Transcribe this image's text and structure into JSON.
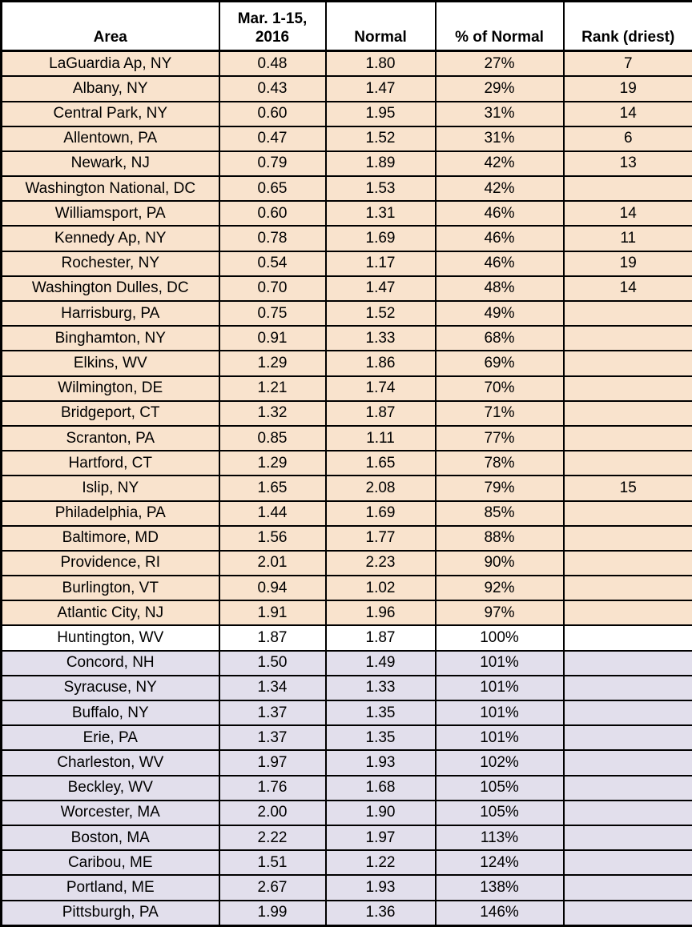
{
  "colors": {
    "border": "#000000",
    "text": "#000000",
    "header_fill": "#ffffff",
    "below_normal_fill": "#f9e3cd",
    "at_normal_fill": "#ffffff",
    "above_normal_fill": "#e2dfec"
  },
  "chart_data": {
    "type": "table",
    "title": "",
    "columns": [
      "Area",
      "Mar. 1-15, 2016",
      "Normal",
      "% of Normal",
      "Rank (driest)"
    ],
    "legend_semantics": {
      "band-below": "precipitation below normal (% of Normal < 100%)",
      "band-at": "precipitation at normal (100%)",
      "band-above": "precipitation above normal (% of Normal > 100%)"
    },
    "rows": [
      {
        "area": "LaGuardia Ap, NY",
        "mar_1_15_2016": "0.48",
        "normal": "1.80",
        "pct_of_normal": "27%",
        "rank_driest": "7",
        "band": "below"
      },
      {
        "area": "Albany, NY",
        "mar_1_15_2016": "0.43",
        "normal": "1.47",
        "pct_of_normal": "29%",
        "rank_driest": "19",
        "band": "below"
      },
      {
        "area": "Central Park, NY",
        "mar_1_15_2016": "0.60",
        "normal": "1.95",
        "pct_of_normal": "31%",
        "rank_driest": "14",
        "band": "below"
      },
      {
        "area": "Allentown, PA",
        "mar_1_15_2016": "0.47",
        "normal": "1.52",
        "pct_of_normal": "31%",
        "rank_driest": "6",
        "band": "below"
      },
      {
        "area": "Newark, NJ",
        "mar_1_15_2016": "0.79",
        "normal": "1.89",
        "pct_of_normal": "42%",
        "rank_driest": "13",
        "band": "below"
      },
      {
        "area": "Washington National, DC",
        "mar_1_15_2016": "0.65",
        "normal": "1.53",
        "pct_of_normal": "42%",
        "rank_driest": "",
        "band": "below"
      },
      {
        "area": "Williamsport, PA",
        "mar_1_15_2016": "0.60",
        "normal": "1.31",
        "pct_of_normal": "46%",
        "rank_driest": "14",
        "band": "below"
      },
      {
        "area": "Kennedy Ap, NY",
        "mar_1_15_2016": "0.78",
        "normal": "1.69",
        "pct_of_normal": "46%",
        "rank_driest": "11",
        "band": "below"
      },
      {
        "area": "Rochester, NY",
        "mar_1_15_2016": "0.54",
        "normal": "1.17",
        "pct_of_normal": "46%",
        "rank_driest": "19",
        "band": "below"
      },
      {
        "area": "Washington Dulles, DC",
        "mar_1_15_2016": "0.70",
        "normal": "1.47",
        "pct_of_normal": "48%",
        "rank_driest": "14",
        "band": "below"
      },
      {
        "area": "Harrisburg, PA",
        "mar_1_15_2016": "0.75",
        "normal": "1.52",
        "pct_of_normal": "49%",
        "rank_driest": "",
        "band": "below"
      },
      {
        "area": "Binghamton, NY",
        "mar_1_15_2016": "0.91",
        "normal": "1.33",
        "pct_of_normal": "68%",
        "rank_driest": "",
        "band": "below"
      },
      {
        "area": "Elkins, WV",
        "mar_1_15_2016": "1.29",
        "normal": "1.86",
        "pct_of_normal": "69%",
        "rank_driest": "",
        "band": "below"
      },
      {
        "area": "Wilmington, DE",
        "mar_1_15_2016": "1.21",
        "normal": "1.74",
        "pct_of_normal": "70%",
        "rank_driest": "",
        "band": "below"
      },
      {
        "area": "Bridgeport, CT",
        "mar_1_15_2016": "1.32",
        "normal": "1.87",
        "pct_of_normal": "71%",
        "rank_driest": "",
        "band": "below"
      },
      {
        "area": "Scranton, PA",
        "mar_1_15_2016": "0.85",
        "normal": "1.11",
        "pct_of_normal": "77%",
        "rank_driest": "",
        "band": "below"
      },
      {
        "area": "Hartford, CT",
        "mar_1_15_2016": "1.29",
        "normal": "1.65",
        "pct_of_normal": "78%",
        "rank_driest": "",
        "band": "below"
      },
      {
        "area": "Islip, NY",
        "mar_1_15_2016": "1.65",
        "normal": "2.08",
        "pct_of_normal": "79%",
        "rank_driest": "15",
        "band": "below"
      },
      {
        "area": "Philadelphia, PA",
        "mar_1_15_2016": "1.44",
        "normal": "1.69",
        "pct_of_normal": "85%",
        "rank_driest": "",
        "band": "below"
      },
      {
        "area": "Baltimore, MD",
        "mar_1_15_2016": "1.56",
        "normal": "1.77",
        "pct_of_normal": "88%",
        "rank_driest": "",
        "band": "below"
      },
      {
        "area": "Providence, RI",
        "mar_1_15_2016": "2.01",
        "normal": "2.23",
        "pct_of_normal": "90%",
        "rank_driest": "",
        "band": "below"
      },
      {
        "area": "Burlington, VT",
        "mar_1_15_2016": "0.94",
        "normal": "1.02",
        "pct_of_normal": "92%",
        "rank_driest": "",
        "band": "below"
      },
      {
        "area": "Atlantic City, NJ",
        "mar_1_15_2016": "1.91",
        "normal": "1.96",
        "pct_of_normal": "97%",
        "rank_driest": "",
        "band": "below"
      },
      {
        "area": "Huntington, WV",
        "mar_1_15_2016": "1.87",
        "normal": "1.87",
        "pct_of_normal": "100%",
        "rank_driest": "",
        "band": "at"
      },
      {
        "area": "Concord, NH",
        "mar_1_15_2016": "1.50",
        "normal": "1.49",
        "pct_of_normal": "101%",
        "rank_driest": "",
        "band": "above"
      },
      {
        "area": "Syracuse, NY",
        "mar_1_15_2016": "1.34",
        "normal": "1.33",
        "pct_of_normal": "101%",
        "rank_driest": "",
        "band": "above"
      },
      {
        "area": "Buffalo, NY",
        "mar_1_15_2016": "1.37",
        "normal": "1.35",
        "pct_of_normal": "101%",
        "rank_driest": "",
        "band": "above"
      },
      {
        "area": "Erie, PA",
        "mar_1_15_2016": "1.37",
        "normal": "1.35",
        "pct_of_normal": "101%",
        "rank_driest": "",
        "band": "above"
      },
      {
        "area": "Charleston, WV",
        "mar_1_15_2016": "1.97",
        "normal": "1.93",
        "pct_of_normal": "102%",
        "rank_driest": "",
        "band": "above"
      },
      {
        "area": "Beckley, WV",
        "mar_1_15_2016": "1.76",
        "normal": "1.68",
        "pct_of_normal": "105%",
        "rank_driest": "",
        "band": "above"
      },
      {
        "area": "Worcester, MA",
        "mar_1_15_2016": "2.00",
        "normal": "1.90",
        "pct_of_normal": "105%",
        "rank_driest": "",
        "band": "above"
      },
      {
        "area": "Boston, MA",
        "mar_1_15_2016": "2.22",
        "normal": "1.97",
        "pct_of_normal": "113%",
        "rank_driest": "",
        "band": "above"
      },
      {
        "area": "Caribou, ME",
        "mar_1_15_2016": "1.51",
        "normal": "1.22",
        "pct_of_normal": "124%",
        "rank_driest": "",
        "band": "above"
      },
      {
        "area": "Portland, ME",
        "mar_1_15_2016": "2.67",
        "normal": "1.93",
        "pct_of_normal": "138%",
        "rank_driest": "",
        "band": "above"
      },
      {
        "area": "Pittsburgh, PA",
        "mar_1_15_2016": "1.99",
        "normal": "1.36",
        "pct_of_normal": "146%",
        "rank_driest": "",
        "band": "above"
      }
    ]
  }
}
